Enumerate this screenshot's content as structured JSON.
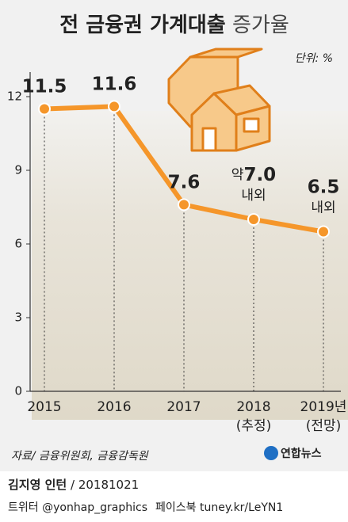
{
  "chart_data": {
    "type": "line",
    "title": "전 금융권 가계대출",
    "title_suffix": "증가율",
    "unit": "단위: %",
    "categories": [
      "2015",
      "2016",
      "2017",
      "2018",
      "2019년"
    ],
    "category_notes": [
      null,
      null,
      null,
      "(추정)",
      "(전망)"
    ],
    "series": [
      {
        "color": "#f5962a",
        "values": [
          11.5,
          11.6,
          7.6,
          7.0,
          6.5
        ],
        "value_labels": [
          "11.5",
          "11.6",
          "7.6",
          "7.0",
          "6.5"
        ],
        "label_prefixes": [
          null,
          null,
          null,
          "약",
          null
        ],
        "label_suffixes": [
          null,
          null,
          null,
          "내외",
          "내외"
        ]
      }
    ],
    "ylim": [
      0,
      13
    ],
    "yticks": [
      0,
      3,
      6,
      9,
      12
    ]
  },
  "source": "자료/ 금융위원회, 금융감독원",
  "logo": "연합뉴스",
  "footer": {
    "author": "김지영 인턴",
    "date": " / 20181021",
    "twitter": "트위터 @yonhap_graphics",
    "facebook": "페이스북 tuney.kr/LeYN1"
  }
}
